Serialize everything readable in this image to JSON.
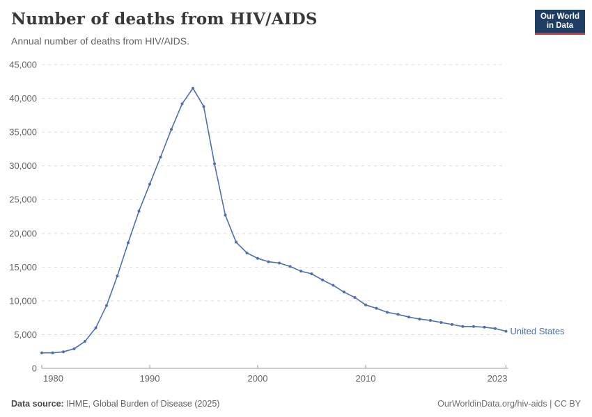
{
  "header": {
    "title": "Number of deaths from HIV/AIDS",
    "subtitle": "Annual number of deaths from HIV/AIDS."
  },
  "logo": {
    "line1": "Our World",
    "line2": "in Data",
    "bg_color": "#1d3d63",
    "accent_color": "#d7332e"
  },
  "chart_data": {
    "type": "line",
    "title": "Number of deaths from HIV/AIDS",
    "subtitle": "Annual number of deaths from HIV/AIDS.",
    "grid": "horizontal-dashed",
    "legend_position": "end-of-line-label",
    "xlim": [
      1980,
      2023
    ],
    "ylim": [
      0,
      45000
    ],
    "xticks": [
      1980,
      1990,
      2000,
      2010,
      2023
    ],
    "yticks": [
      0,
      5000,
      10000,
      15000,
      20000,
      25000,
      30000,
      35000,
      40000,
      45000
    ],
    "series": [
      {
        "name": "United States",
        "color": "#4c6fae",
        "x": [
          1980,
          1981,
          1982,
          1983,
          1984,
          1985,
          1986,
          1987,
          1988,
          1989,
          1990,
          1991,
          1992,
          1993,
          1994,
          1995,
          1996,
          1997,
          1998,
          1999,
          2000,
          2001,
          2002,
          2003,
          2004,
          2005,
          2006,
          2007,
          2008,
          2009,
          2010,
          2011,
          2012,
          2013,
          2014,
          2015,
          2016,
          2017,
          2018,
          2019,
          2020,
          2021,
          2022,
          2023
        ],
        "values": [
          2300,
          2300,
          2450,
          2900,
          4000,
          6000,
          9300,
          13700,
          18600,
          23300,
          27300,
          31300,
          35400,
          39200,
          41500,
          38800,
          30300,
          22700,
          18700,
          17100,
          16300,
          15800,
          15600,
          15100,
          14400,
          14000,
          13100,
          12300,
          11300,
          10500,
          9400,
          8900,
          8300,
          8000,
          7600,
          7300,
          7100,
          6800,
          6500,
          6200,
          6200,
          6100,
          5900,
          5500
        ]
      }
    ]
  },
  "footer": {
    "source_label": "Data source:",
    "source_text": " IHME, Global Burden of Disease (2025)",
    "link_text": "OurWorldinData.org/hiv-aids | CC BY"
  },
  "colors": {
    "line": "#4c6fae",
    "grid": "#dcdcdc",
    "axis": "#999999",
    "tick_label": "#646464",
    "title": "#383838"
  }
}
